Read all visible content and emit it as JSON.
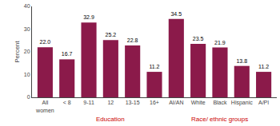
{
  "chart_data": {
    "type": "bar",
    "categories": [
      "All\nwomen",
      "< 8",
      "9-11",
      "12",
      "13-15",
      "16+",
      "AI/AN",
      "White",
      "Black",
      "Hispanic",
      "A/PI"
    ],
    "values": [
      22.0,
      16.7,
      32.9,
      25.2,
      22.8,
      11.2,
      34.5,
      23.5,
      21.9,
      13.8,
      11.2
    ],
    "value_labels": [
      "22.0",
      "16.7",
      "32.9",
      "25.2",
      "22.8",
      "11.2",
      "34.5",
      "23.5",
      "21.9",
      "13.8",
      "11.2"
    ],
    "data_labels": true,
    "color": "#8B1A4A",
    "ylabel": "Percent",
    "ylim": [
      0,
      40
    ],
    "yticks": [
      0,
      10,
      20,
      30,
      40
    ],
    "grid": false,
    "annotations": [
      {
        "text": "Education",
        "color": "#CC0000"
      },
      {
        "text": "Race/ ethnic groups",
        "color": "#CC0000"
      }
    ]
  }
}
